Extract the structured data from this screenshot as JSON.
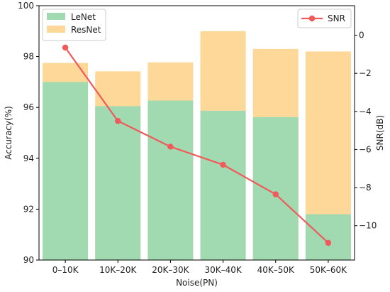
{
  "chart_data": {
    "type": "bar",
    "categories": [
      "0–10K",
      "10K–20K",
      "20K–30K",
      "30K–40K",
      "40K–50K",
      "50K–60K"
    ],
    "series": [
      {
        "name": "LeNet",
        "type": "bar",
        "axis": "left",
        "color": "#a1d9b0",
        "values": [
          97.0,
          96.05,
          96.27,
          95.87,
          95.62,
          91.8
        ]
      },
      {
        "name": "ResNet",
        "type": "bar",
        "axis": "left",
        "color": "#fdd899",
        "values": [
          97.75,
          97.42,
          97.77,
          99.0,
          98.3,
          98.2
        ]
      },
      {
        "name": "SNR",
        "type": "line",
        "axis": "right",
        "color": "#f05a5a",
        "marker": "circle",
        "values": [
          -0.65,
          -4.5,
          -5.85,
          -6.8,
          -8.35,
          -10.9
        ]
      }
    ],
    "xlabel": "Noise(PN)",
    "ylabel": "Accuracy(%)",
    "y2label": "SNR(dB)",
    "ylim": [
      90,
      100
    ],
    "y2lim": [
      -11.8,
      1.55
    ],
    "yticks": [
      "90",
      "92",
      "94",
      "96",
      "98",
      "100"
    ],
    "y2ticks": [
      "0",
      "−2",
      "−4",
      "−6",
      "−8",
      "−10"
    ],
    "legend_left": {
      "placement": "top-left",
      "items": [
        "LeNet",
        "ResNet"
      ]
    },
    "legend_right": {
      "placement": "top-right",
      "items": [
        "SNR"
      ]
    },
    "grid": false
  }
}
